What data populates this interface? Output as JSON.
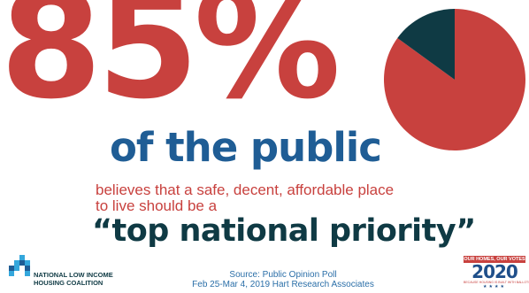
{
  "headline": {
    "stat": "85%",
    "subject": "of the public",
    "line1": "believes that a safe, decent, affordable place",
    "line2": "to live should be a",
    "priority": "“top national priority”"
  },
  "chart_data": {
    "type": "pie",
    "slices": [
      {
        "label": "",
        "value": 85,
        "color": "#c8413e"
      },
      {
        "label": "",
        "value": 15,
        "color": "#0f3a44"
      }
    ]
  },
  "org": {
    "line1": "NATIONAL LOW INCOME",
    "line2": "HOUSING COALITION"
  },
  "source": {
    "line1": "Source: Public Opinion Poll",
    "line2": "Feb 25-Mar 4, 2019 Hart Research Associates"
  },
  "badge": {
    "top": "OUR HOMES, OUR VOTES",
    "year": "2020",
    "tagline": "BECAUSE HOUSING IS BUILT WITH BALLOTS",
    "stars": "★★★★"
  },
  "colors": {
    "red": "#c8413e",
    "blue": "#1f5d95",
    "dark_teal": "#0f3a44",
    "light_blue": "#34a7dc"
  }
}
